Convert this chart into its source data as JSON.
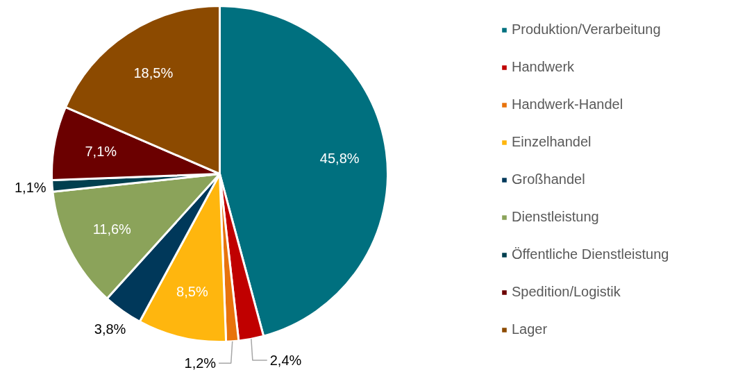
{
  "chart_data": {
    "type": "pie",
    "categories": [
      "Produktion/Verarbeitung",
      "Handwerk",
      "Handwerk-Handel",
      "Einzelhandel",
      "Großhandel",
      "Dienstleistung",
      "Öffentliche Dienstleistung",
      "Spedition/Logistik",
      "Lager"
    ],
    "values": [
      45.8,
      2.4,
      1.2,
      8.5,
      3.8,
      11.6,
      1.1,
      7.1,
      18.5
    ],
    "colors": [
      "#00707f",
      "#c00000",
      "#e8730c",
      "#ffb60e",
      "#00385a",
      "#8ba35a",
      "#003f4f",
      "#6b0000",
      "#8c4a00"
    ],
    "value_labels": [
      "45,8%",
      "2,4%",
      "1,2%",
      "8,5%",
      "3,8%",
      "11,6%",
      "1,1%",
      "7,1%",
      "18,5%"
    ],
    "legend": "right"
  }
}
